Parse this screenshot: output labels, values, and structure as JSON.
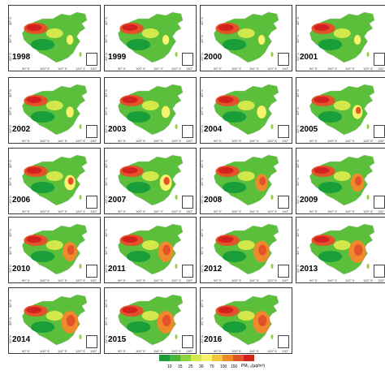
{
  "panels": [
    {
      "year": "1998"
    },
    {
      "year": "1999"
    },
    {
      "year": "2000"
    },
    {
      "year": "2001"
    },
    {
      "year": "2002"
    },
    {
      "year": "2003"
    },
    {
      "year": "2004"
    },
    {
      "year": "2005"
    },
    {
      "year": "2006"
    },
    {
      "year": "2007"
    },
    {
      "year": "2008"
    },
    {
      "year": "2009"
    },
    {
      "year": "2010"
    },
    {
      "year": "2011"
    },
    {
      "year": "2012"
    },
    {
      "year": "2013"
    },
    {
      "year": "2014"
    },
    {
      "year": "2015"
    },
    {
      "year": "2016"
    }
  ],
  "axis_labels": {
    "lat": [
      "40° N",
      "30° N",
      "20° N"
    ],
    "lon": [
      "90° E",
      "100° E",
      "110° E",
      "120° E",
      "130° E"
    ]
  },
  "legend": {
    "ticks": [
      "10",
      "15",
      "25",
      "30",
      "70",
      "100",
      "150"
    ],
    "unit": "PM₂.₅(μg/m³)",
    "colors": [
      "#1a9e3a",
      "#47b83a",
      "#8fd13e",
      "#d3e84a",
      "#f8f36a",
      "#f3c53b",
      "#ee8a2c",
      "#e2532a",
      "#d4201e"
    ]
  }
}
